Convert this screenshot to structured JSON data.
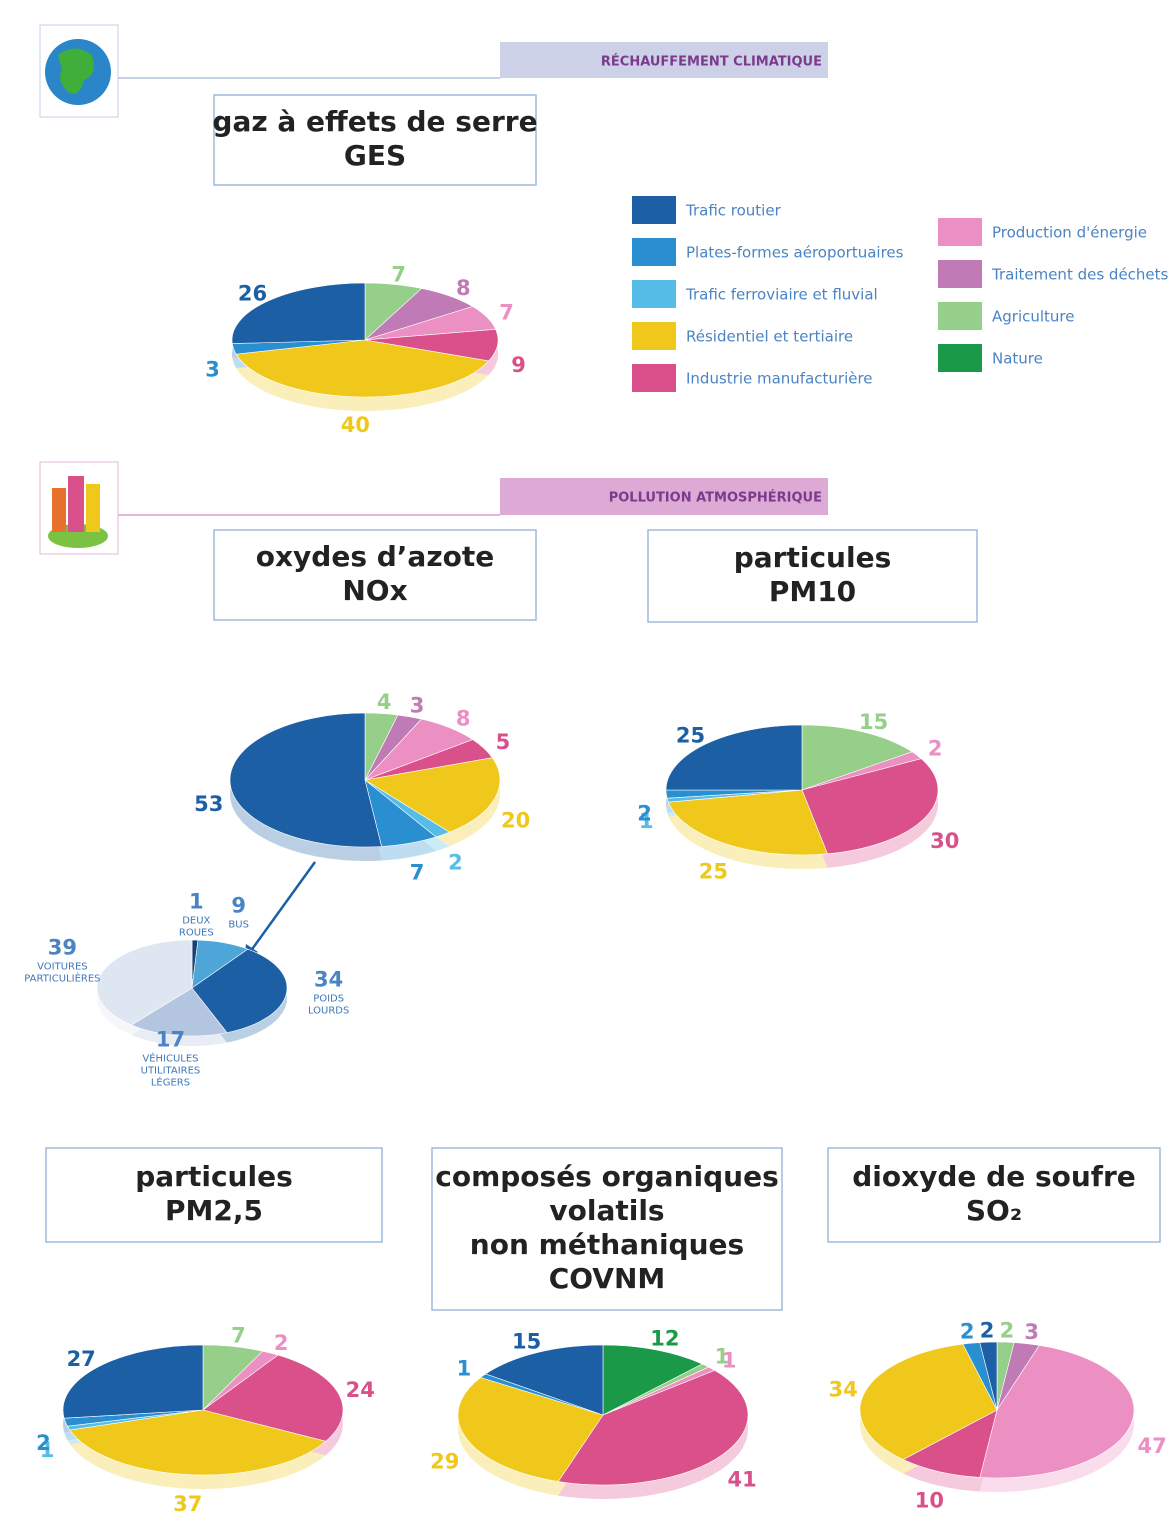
{
  "sections": [
    "RÉCHAUFFEMENT CLIMATIQUE",
    "POLLUTION ATMOSPHÉRIQUE"
  ],
  "legend": [
    {
      "name": "Trafic routier",
      "color": "#1d5fa5"
    },
    {
      "name": "Plates-formes aéroportuaires",
      "color": "#2a8fd0"
    },
    {
      "name": "Trafic ferroviaire et fluvial",
      "color": "#55bde8"
    },
    {
      "name": "Résidentiel et tertiaire",
      "color": "#f0c81c"
    },
    {
      "name": "Industrie manufacturière",
      "color": "#d9508a"
    },
    {
      "name": "Production d'énergie",
      "color": "#ec8fc2"
    },
    {
      "name": "Traitement des déchets",
      "color": "#c07ab5"
    },
    {
      "name": "Agriculture",
      "color": "#96cf8a"
    },
    {
      "name": "Nature",
      "color": "#1a9a48"
    }
  ],
  "chart_data": [
    {
      "type": "pie",
      "title": [
        "gaz à effets de serre",
        "GES"
      ],
      "values": [
        7,
        8,
        7,
        9,
        40,
        3,
        26
      ],
      "colors": [
        "#96cf8a",
        "#c07ab5",
        "#ec8fc2",
        "#d9508a",
        "#f0c81c",
        "#2a8fd0",
        "#1d5fa5"
      ]
    },
    {
      "type": "pie",
      "title": [
        "oxydes d’azote",
        "NOx"
      ],
      "values": [
        4,
        3,
        8,
        5,
        20,
        2,
        7,
        53
      ],
      "colors": [
        "#96cf8a",
        "#c07ab5",
        "#ec8fc2",
        "#d9508a",
        "#f0c81c",
        "#55bde8",
        "#2a8fd0",
        "#1d5fa5"
      ]
    },
    {
      "type": "pie",
      "title": [
        "particules",
        "PM10"
      ],
      "values": [
        15,
        2,
        30,
        25,
        1,
        2,
        25
      ],
      "colors": [
        "#96cf8a",
        "#ec8fc2",
        "#d9508a",
        "#f0c81c",
        "#55bde8",
        "#2a8fd0",
        "#1d5fa5"
      ]
    },
    {
      "type": "pie",
      "categories": [
        [
          "DEUX",
          "ROUES"
        ],
        [
          "BUS"
        ],
        [
          "POIDS",
          "LOURDS"
        ],
        [
          "VÉHICULES",
          "UTILITAIRES",
          "LÉGERS"
        ],
        [
          "VOITURES",
          "PARTICULIÈRES"
        ]
      ],
      "values": [
        1,
        9,
        34,
        17,
        39
      ],
      "colors": [
        "#17416f",
        "#4ea6d8",
        "#1d5fa5",
        "#b4c5df",
        "#dde6f1"
      ]
    },
    {
      "type": "pie",
      "title": [
        "particules",
        "PM2,5"
      ],
      "values": [
        7,
        2,
        24,
        37,
        1,
        2,
        27
      ],
      "colors": [
        "#96cf8a",
        "#ec8fc2",
        "#d9508a",
        "#f0c81c",
        "#55bde8",
        "#2a8fd0",
        "#1d5fa5"
      ]
    },
    {
      "type": "pie",
      "title": [
        "composés organiques",
        "volatils",
        "non méthaniques",
        "COVNM"
      ],
      "values": [
        12,
        1,
        1,
        41,
        29,
        1,
        15
      ],
      "colors": [
        "#1a9a48",
        "#96cf8a",
        "#ec8fc2",
        "#d9508a",
        "#f0c81c",
        "#2a8fd0",
        "#1d5fa5"
      ]
    },
    {
      "type": "pie",
      "title": [
        "dioxyde de soufre",
        "SO₂"
      ],
      "values": [
        2,
        3,
        47,
        10,
        34,
        2,
        2
      ],
      "colors": [
        "#96cf8a",
        "#c07ab5",
        "#ec8fc2",
        "#d9508a",
        "#f0c81c",
        "#2a8fd0",
        "#1d5fa5"
      ]
    }
  ]
}
